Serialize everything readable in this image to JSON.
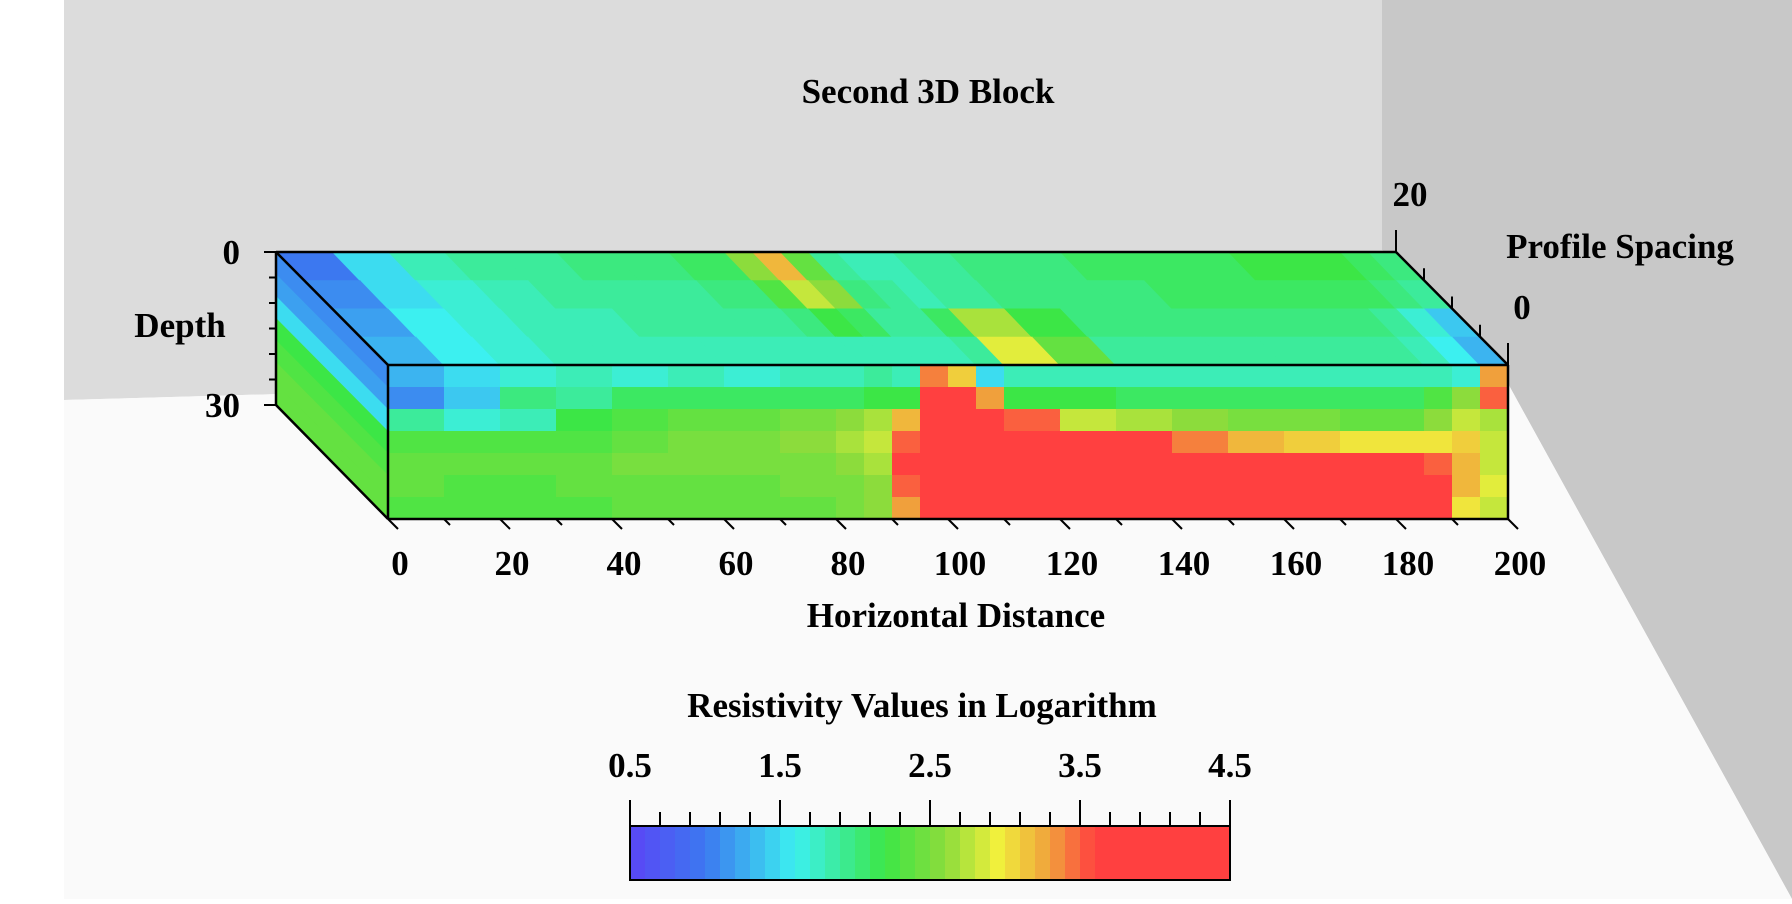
{
  "chart_data": {
    "type": "heatmap",
    "title": "Second 3D Block",
    "x_axis": {
      "label": "Horizontal Distance",
      "range": [
        0,
        200
      ],
      "ticks": [
        "0",
        "20",
        "40",
        "60",
        "80",
        "100",
        "120",
        "140",
        "160",
        "180",
        "200"
      ]
    },
    "depth_axis": {
      "label": "Depth",
      "range": [
        0,
        30
      ],
      "ticks": [
        "0",
        "30"
      ]
    },
    "profile_axis": {
      "label": "Profile Spacing",
      "range": [
        0,
        20
      ],
      "ticks": [
        "0",
        "20"
      ]
    },
    "colorbar": {
      "label": "Resistivity Values in Logarithm",
      "range": [
        0.5,
        4.5
      ],
      "ticks": [
        "0.5",
        "1.5",
        "2.5",
        "3.5",
        "4.5"
      ],
      "stops": [
        {
          "value": 0.5,
          "color": "#5a46f5"
        },
        {
          "value": 1.0,
          "color": "#3c78f0"
        },
        {
          "value": 1.6,
          "color": "#3cf0f0"
        },
        {
          "value": 2.2,
          "color": "#3ce646"
        },
        {
          "value": 2.6,
          "color": "#8cdc3c"
        },
        {
          "value": 2.95,
          "color": "#f0f03c"
        },
        {
          "value": 3.3,
          "color": "#f0a03c"
        },
        {
          "value": 3.6,
          "color": "#ff4040"
        },
        {
          "value": 4.5,
          "color": "#ff4040"
        }
      ]
    },
    "front_face": {
      "description_rows": "depth layers top to bottom (0 to 30)",
      "x_points": [
        0,
        10,
        20,
        30,
        40,
        50,
        60,
        70,
        80,
        85,
        90,
        95,
        100,
        105,
        110,
        120,
        130,
        140,
        150,
        160,
        170,
        180,
        185,
        190,
        195,
        200
      ],
      "rows": [
        [
          1.3,
          1.5,
          1.7,
          1.8,
          1.7,
          1.8,
          1.7,
          1.8,
          1.8,
          1.9,
          1.8,
          3.4,
          3.1,
          1.5,
          1.8,
          1.8,
          1.8,
          1.8,
          1.8,
          1.8,
          1.8,
          1.8,
          1.8,
          1.7,
          3.3,
          2.4
        ],
        [
          1.1,
          1.4,
          2.0,
          1.9,
          2.1,
          2.1,
          2.1,
          2.1,
          2.1,
          2.2,
          2.2,
          3.9,
          3.7,
          3.3,
          2.2,
          2.2,
          2.1,
          2.1,
          2.1,
          2.1,
          2.1,
          2.1,
          2.3,
          2.6,
          3.5,
          2.5
        ],
        [
          1.9,
          1.7,
          1.8,
          2.2,
          2.3,
          2.4,
          2.4,
          2.5,
          2.6,
          2.7,
          3.2,
          4.3,
          4.4,
          4.1,
          3.5,
          2.8,
          2.7,
          2.6,
          2.5,
          2.5,
          2.4,
          2.4,
          2.6,
          2.8,
          2.7,
          2.5
        ],
        [
          2.3,
          2.3,
          2.3,
          2.3,
          2.4,
          2.5,
          2.5,
          2.6,
          2.7,
          2.8,
          3.5,
          4.4,
          4.4,
          4.4,
          4.2,
          3.9,
          3.6,
          3.4,
          3.2,
          3.1,
          3.0,
          3.0,
          3.0,
          3.1,
          2.8,
          2.5
        ],
        [
          2.4,
          2.4,
          2.4,
          2.4,
          2.5,
          2.5,
          2.5,
          2.5,
          2.6,
          2.7,
          3.6,
          4.4,
          4.4,
          4.4,
          4.4,
          4.4,
          4.4,
          4.2,
          4.0,
          3.8,
          3.7,
          3.6,
          3.5,
          3.2,
          2.8,
          2.6
        ],
        [
          2.4,
          2.3,
          2.3,
          2.4,
          2.4,
          2.4,
          2.4,
          2.5,
          2.5,
          2.6,
          3.5,
          4.4,
          4.4,
          4.4,
          4.4,
          4.4,
          4.4,
          4.4,
          4.4,
          4.4,
          4.4,
          4.3,
          3.8,
          3.2,
          2.9,
          2.6
        ],
        [
          2.3,
          2.3,
          2.3,
          2.3,
          2.4,
          2.4,
          2.4,
          2.4,
          2.5,
          2.6,
          3.3,
          4.4,
          4.4,
          4.4,
          4.4,
          4.4,
          4.4,
          4.4,
          4.4,
          4.4,
          4.4,
          4.4,
          3.6,
          3.0,
          2.8,
          2.6
        ]
      ]
    },
    "top_face": {
      "description_rows": "profile positions back (20) to front (0)",
      "x_points": [
        0,
        10,
        20,
        30,
        40,
        50,
        60,
        70,
        80,
        85,
        90,
        95,
        100,
        105,
        110,
        120,
        130,
        140,
        150,
        160,
        170,
        180,
        185,
        190,
        195,
        200
      ],
      "rows": [
        [
          1.0,
          1.5,
          1.8,
          1.9,
          1.9,
          2.0,
          2.0,
          2.1,
          2.6,
          3.2,
          2.4,
          1.9,
          1.8,
          1.8,
          1.9,
          2.0,
          2.0,
          2.1,
          2.1,
          2.1,
          2.2,
          2.2,
          2.2,
          2.1,
          2.0,
          2.0
        ],
        [
          1.1,
          1.5,
          1.7,
          1.8,
          1.9,
          1.9,
          1.9,
          2.0,
          2.3,
          2.8,
          2.6,
          2.0,
          1.9,
          1.8,
          1.9,
          2.0,
          2.0,
          2.0,
          2.1,
          2.1,
          2.1,
          2.1,
          2.1,
          2.0,
          1.9,
          1.9
        ],
        [
          1.2,
          1.6,
          1.7,
          1.8,
          1.8,
          1.9,
          1.9,
          1.9,
          2.0,
          2.2,
          2.1,
          1.9,
          1.9,
          2.1,
          2.7,
          2.2,
          2.0,
          2.0,
          2.0,
          2.0,
          2.0,
          2.0,
          1.9,
          1.7,
          1.4,
          1.4
        ],
        [
          1.3,
          1.6,
          1.7,
          1.8,
          1.8,
          1.8,
          1.8,
          1.8,
          1.8,
          1.8,
          1.8,
          1.8,
          1.8,
          1.9,
          2.9,
          2.4,
          1.9,
          1.9,
          1.9,
          1.9,
          1.9,
          1.9,
          1.8,
          1.6,
          1.3,
          1.2
        ]
      ]
    },
    "side_face": {
      "description": "left (x=0) face, depth top to bottom",
      "values": [
        1.1,
        1.2,
        1.5,
        2.2,
        2.3,
        2.4,
        2.4
      ]
    }
  }
}
